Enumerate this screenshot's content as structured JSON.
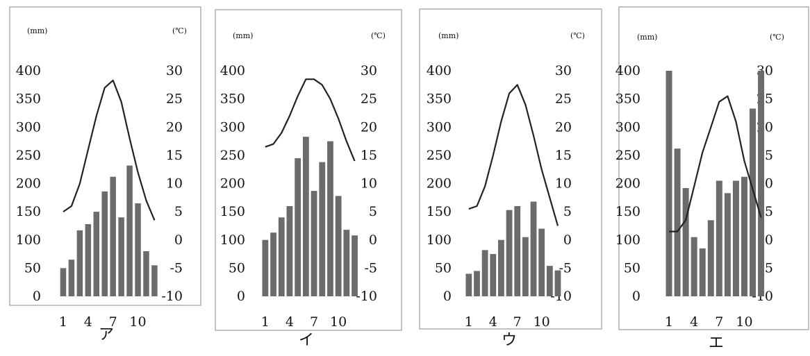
{
  "chart_data": [
    {
      "type": "bar",
      "caption": "ア",
      "left_unit": "(mm)",
      "right_unit": "(℃)",
      "x_ticks": [
        "1",
        "4",
        "7",
        "10"
      ],
      "categories": [
        "1",
        "2",
        "3",
        "4",
        "5",
        "6",
        "7",
        "8",
        "9",
        "10",
        "11",
        "12"
      ],
      "y_left_ticks": [
        "400",
        "350",
        "300",
        "250",
        "200",
        "150",
        "100",
        "50",
        "0"
      ],
      "y_right_ticks": [
        "30",
        "25",
        "20",
        "15",
        "10",
        "5",
        "0",
        "-5",
        "-10"
      ],
      "ylim_precipitation": [
        0,
        400
      ],
      "ylim_temperature": [
        -10,
        30
      ],
      "grid": false,
      "series": [
        {
          "kind": "bar",
          "axis": "left",
          "color": "#6b6b6b",
          "values": [
            50,
            65,
            117,
            128,
            150,
            186,
            212,
            140,
            232,
            165,
            80,
            55
          ]
        },
        {
          "kind": "line",
          "axis": "right",
          "color": "#222222",
          "values": [
            5.0,
            6.0,
            10.0,
            16.0,
            22.0,
            27.0,
            28.3,
            24.5,
            18.0,
            12.0,
            7.0,
            3.5
          ]
        }
      ]
    },
    {
      "type": "bar",
      "caption": "イ",
      "left_unit": "(mm)",
      "right_unit": "(℃)",
      "x_ticks": [
        "1",
        "4",
        "7",
        "10"
      ],
      "categories": [
        "1",
        "2",
        "3",
        "4",
        "5",
        "6",
        "7",
        "8",
        "9",
        "10",
        "11",
        "12"
      ],
      "y_left_ticks": [
        "400",
        "350",
        "300",
        "250",
        "200",
        "150",
        "100",
        "50",
        "0"
      ],
      "y_right_ticks": [
        "30",
        "25",
        "20",
        "15",
        "10",
        "5",
        "0",
        "-5",
        "-10"
      ],
      "ylim_precipitation": [
        0,
        400
      ],
      "ylim_temperature": [
        -10,
        30
      ],
      "grid": false,
      "series": [
        {
          "kind": "bar",
          "axis": "left",
          "color": "#6b6b6b",
          "values": [
            100,
            113,
            140,
            160,
            245,
            283,
            187,
            238,
            275,
            178,
            118,
            108
          ]
        },
        {
          "kind": "line",
          "axis": "right",
          "color": "#222222",
          "values": [
            16.5,
            17.0,
            19.0,
            22.0,
            25.5,
            28.5,
            28.5,
            27.5,
            25.0,
            21.5,
            17.5,
            14.0
          ]
        }
      ]
    },
    {
      "type": "bar",
      "caption": "ウ",
      "left_unit": "(mm)",
      "right_unit": "(℃)",
      "x_ticks": [
        "1",
        "4",
        "7",
        "10"
      ],
      "categories": [
        "1",
        "2",
        "3",
        "4",
        "5",
        "6",
        "7",
        "8",
        "9",
        "10",
        "11",
        "12"
      ],
      "y_left_ticks": [
        "400",
        "350",
        "300",
        "250",
        "200",
        "150",
        "100",
        "50",
        "0"
      ],
      "y_right_ticks": [
        "30",
        "25",
        "20",
        "15",
        "10",
        "5",
        "0",
        "-5",
        "-10"
      ],
      "ylim_precipitation": [
        0,
        400
      ],
      "ylim_temperature": [
        -10,
        30
      ],
      "grid": false,
      "series": [
        {
          "kind": "bar",
          "axis": "left",
          "color": "#6b6b6b",
          "values": [
            40,
            45,
            82,
            75,
            100,
            153,
            160,
            105,
            168,
            120,
            54,
            46
          ]
        },
        {
          "kind": "line",
          "axis": "right",
          "color": "#222222",
          "values": [
            5.5,
            6.0,
            9.5,
            15.0,
            21.0,
            26.0,
            27.5,
            24.0,
            18.5,
            12.5,
            7.5,
            2.5
          ]
        }
      ]
    },
    {
      "type": "bar",
      "caption": "エ",
      "left_unit": "(mm)",
      "right_unit": "(℃)",
      "x_ticks": [
        "1",
        "4",
        "7",
        "10"
      ],
      "categories": [
        "1",
        "2",
        "3",
        "4",
        "5",
        "6",
        "7",
        "8",
        "9",
        "10",
        "11",
        "12"
      ],
      "y_left_ticks": [
        "400",
        "350",
        "300",
        "250",
        "200",
        "150",
        "100",
        "50",
        "0"
      ],
      "y_right_ticks": [
        "30",
        "25",
        "20",
        "15",
        "10",
        "5",
        "0",
        "-5",
        "-10"
      ],
      "ylim_precipitation": [
        0,
        400
      ],
      "ylim_temperature": [
        -10,
        30
      ],
      "grid": false,
      "series": [
        {
          "kind": "bar",
          "axis": "left",
          "color": "#6b6b6b",
          "values": [
            400,
            262,
            192,
            105,
            85,
            135,
            205,
            183,
            205,
            212,
            333,
            400
          ]
        },
        {
          "kind": "line",
          "axis": "right",
          "color": "#222222",
          "values": [
            1.5,
            1.5,
            3.5,
            9.5,
            15.5,
            20.0,
            24.5,
            25.5,
            21.0,
            14.0,
            9.0,
            4.0
          ]
        }
      ]
    }
  ]
}
